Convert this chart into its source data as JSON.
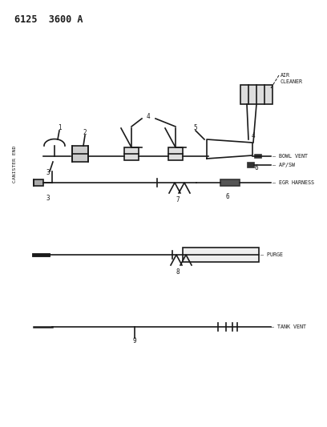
{
  "title": "6125  3600 A",
  "bg_color": "#ffffff",
  "line_color": "#1a1a1a",
  "text_color": "#1a1a1a",
  "labels": {
    "air_cleaner": "AIR\nCLEANER",
    "bowl_vent": "BOWL VENT",
    "ap_sw": "AP/SW",
    "egr_harness": "EGR HARNESS",
    "purge": "PURGE",
    "tank_vent": "TANK VENT",
    "canister_end": "CANISTER END"
  },
  "figsize": [
    4.08,
    5.33
  ],
  "dpi": 100
}
